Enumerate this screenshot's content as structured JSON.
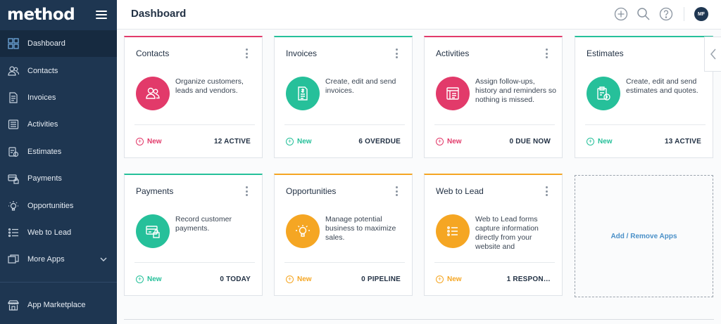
{
  "app": {
    "logo": "method",
    "page_title": "Dashboard"
  },
  "colors": {
    "pink": "#e23a6a",
    "teal": "#26c09a",
    "orange": "#f5a623",
    "sidebar_bg": "#1e3651"
  },
  "sidebar": {
    "items": [
      {
        "label": "Dashboard",
        "icon": "dashboard-icon"
      },
      {
        "label": "Contacts",
        "icon": "contacts-icon"
      },
      {
        "label": "Invoices",
        "icon": "invoice-icon"
      },
      {
        "label": "Activities",
        "icon": "activities-icon"
      },
      {
        "label": "Estimates",
        "icon": "estimates-icon"
      },
      {
        "label": "Payments",
        "icon": "payments-icon"
      },
      {
        "label": "Opportunities",
        "icon": "lightbulb-icon"
      },
      {
        "label": "Web to Lead",
        "icon": "list-icon"
      },
      {
        "label": "More Apps",
        "icon": "more-apps-icon"
      }
    ],
    "marketplace": {
      "label": "App Marketplace",
      "icon": "store-icon"
    }
  },
  "topbar": {
    "avatar_initials": "MF"
  },
  "cards": [
    {
      "title": "Contacts",
      "desc": "Organize customers, leads and vendors.",
      "new_label": "New",
      "stat": "12 ACTIVE",
      "color": "pink",
      "icon": "people-icon"
    },
    {
      "title": "Invoices",
      "desc": "Create, edit and send invoices.",
      "new_label": "New",
      "stat": "6 OVERDUE",
      "color": "teal",
      "icon": "invoice-doc-icon"
    },
    {
      "title": "Activities",
      "desc": "Assign follow-ups, history and reminders so nothing is missed.",
      "new_label": "New",
      "stat": "0 DUE NOW",
      "color": "pink",
      "icon": "checklist-icon"
    },
    {
      "title": "Estimates",
      "desc": "Create, edit and send estimates and quotes.",
      "new_label": "New",
      "stat": "13 ACTIVE",
      "color": "teal",
      "icon": "clipboard-dollar-icon"
    },
    {
      "title": "Payments",
      "desc": "Record customer payments.",
      "new_label": "New",
      "stat": "0 TODAY",
      "color": "teal",
      "icon": "card-lock-icon"
    },
    {
      "title": "Opportunities",
      "desc": "Manage potential business to maximize sales.",
      "new_label": "New",
      "stat": "0 PIPELINE",
      "color": "orange",
      "icon": "lightbulb-icon"
    },
    {
      "title": "Web to Lead",
      "desc": "Web to Lead forms capture information directly from your website and",
      "new_label": "New",
      "stat": "1 RESPON…",
      "color": "orange",
      "icon": "form-list-icon"
    }
  ],
  "add_remove_label": "Add / Remove Apps"
}
